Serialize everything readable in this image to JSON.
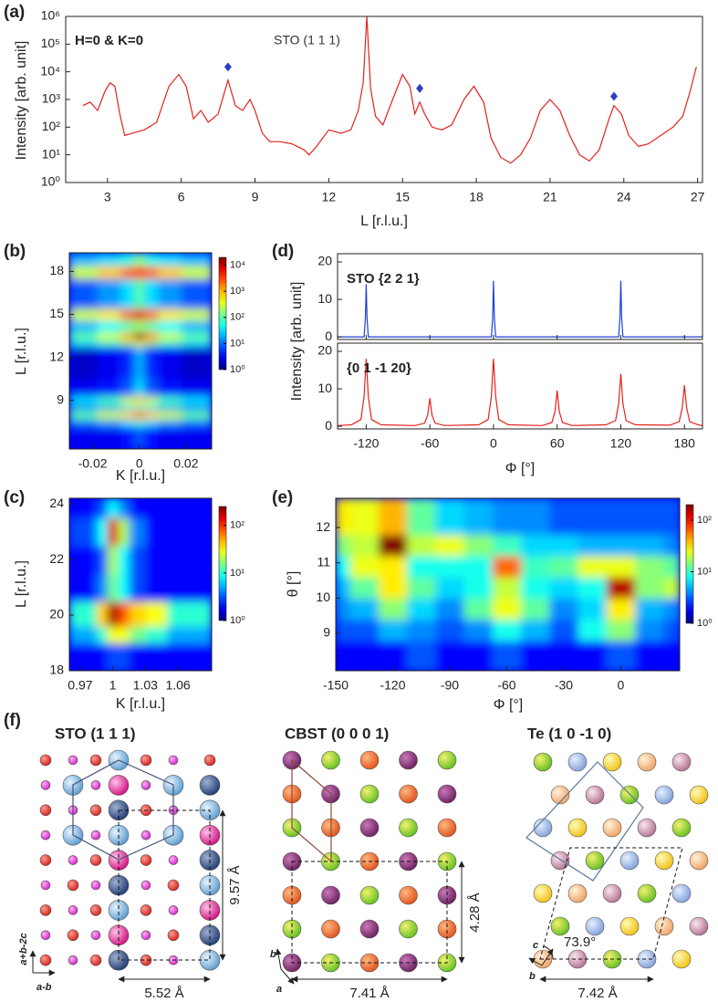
{
  "chart_data": [
    {
      "type": "line",
      "panel": "(a)",
      "xlabel": "L [r.l.u.]",
      "ylabel": "Intensity [arb. unit]",
      "annotations": [
        "H=0 & K=0",
        "STO (1 1 1)"
      ],
      "log_y": true,
      "xlim": [
        1.3,
        27.2
      ],
      "ylim": [
        1,
        1000000
      ],
      "xticks": [
        3,
        6,
        9,
        12,
        15,
        18,
        21,
        24,
        27
      ],
      "yticks": [
        {
          "value": 1,
          "label": "10⁰"
        },
        {
          "value": 10,
          "label": "10¹"
        },
        {
          "value": 100,
          "label": "10²"
        },
        {
          "value": 1000,
          "label": "10³"
        },
        {
          "value": 10000,
          "label": "10⁴"
        },
        {
          "value": 100000,
          "label": "10⁵"
        },
        {
          "value": 1000000,
          "label": "10⁶"
        }
      ],
      "series": [
        {
          "type": "line",
          "color": "#e3231c",
          "x": [
            2.0,
            2.3,
            2.6,
            2.9,
            3.1,
            3.3,
            3.5,
            3.7,
            4.0,
            4.5,
            5.0,
            5.5,
            5.9,
            6.2,
            6.5,
            6.8,
            7.1,
            7.5,
            7.9,
            8.2,
            8.5,
            8.8,
            9.0,
            9.3,
            9.6,
            10.0,
            10.5,
            11.0,
            11.2,
            11.5,
            12.0,
            12.5,
            12.9,
            13.2,
            13.4,
            13.55,
            13.7,
            13.9,
            14.2,
            14.6,
            15.0,
            15.3,
            15.5,
            15.7,
            15.9,
            16.2,
            16.6,
            17.0,
            17.5,
            17.9,
            18.3,
            18.6,
            19.0,
            19.4,
            19.8,
            20.2,
            20.6,
            21.0,
            21.4,
            21.8,
            22.2,
            22.6,
            23.0,
            23.4,
            23.6,
            23.9,
            24.2,
            24.6,
            25.0,
            25.5,
            26.0,
            26.4,
            26.7,
            26.95
          ],
          "values": [
            600,
            800,
            400,
            2000,
            4000,
            3000,
            300,
            50,
            60,
            80,
            150,
            3000,
            8000,
            3000,
            200,
            400,
            150,
            300,
            5000,
            600,
            400,
            1000,
            400,
            60,
            30,
            30,
            25,
            15,
            10,
            20,
            80,
            60,
            80,
            400,
            4000,
            1000000,
            2500,
            250,
            120,
            1000,
            8000,
            3000,
            300,
            800,
            300,
            100,
            80,
            120,
            1000,
            3000,
            800,
            40,
            8,
            5,
            10,
            40,
            400,
            1000,
            400,
            50,
            10,
            6,
            15,
            200,
            600,
            300,
            50,
            20,
            25,
            50,
            100,
            250,
            2000,
            15000
          ]
        },
        {
          "type": "scatter",
          "marker": "diamond",
          "color": "#2b3fc4",
          "x": [
            7.9,
            15.7,
            23.6
          ],
          "values": [
            15000,
            2500,
            1300
          ]
        }
      ]
    },
    {
      "type": "heatmap",
      "panel": "(b)",
      "xlabel": "K [r.l.u.]",
      "ylabel": "L [r.l.u.]",
      "colormap": "jet",
      "log_z": true,
      "xlim": [
        -0.03,
        0.031
      ],
      "ylim": [
        5.6,
        19.3
      ],
      "xticks": [
        -0.02,
        0,
        0.02
      ],
      "yticks": [
        9,
        12,
        15,
        18
      ],
      "xbins": [
        -0.03,
        -0.018,
        -0.008,
        -0.002,
        0.002,
        0.008,
        0.018,
        0.031
      ],
      "ybins": [
        5.6,
        7.2,
        7.7,
        8.3,
        8.7,
        9.3,
        10.5,
        12.8,
        13.2,
        13.8,
        14.6,
        15.4,
        17.5,
        18.4,
        19.3
      ],
      "z": [
        [
          3,
          3,
          4,
          8,
          4,
          3,
          3
        ],
        [
          10,
          15,
          30,
          60,
          30,
          15,
          10
        ],
        [
          100,
          300,
          800,
          2000,
          800,
          300,
          100
        ],
        [
          10,
          15,
          30,
          60,
          30,
          15,
          10
        ],
        [
          30,
          80,
          300,
          800,
          300,
          80,
          30
        ],
        [
          3,
          4,
          8,
          30,
          8,
          4,
          3
        ],
        [
          2,
          3,
          5,
          20,
          5,
          3,
          2
        ],
        [
          30,
          60,
          150,
          500,
          150,
          60,
          30
        ],
        [
          100,
          300,
          1000,
          20000,
          1500,
          300,
          100
        ],
        [
          20,
          40,
          80,
          200,
          80,
          40,
          20
        ],
        [
          300,
          600,
          2000,
          8000,
          2000,
          600,
          300
        ],
        [
          8,
          15,
          30,
          100,
          30,
          15,
          8
        ],
        [
          300,
          800,
          2000,
          4000,
          2000,
          800,
          300
        ],
        [
          20,
          30,
          50,
          150,
          50,
          30,
          20
        ]
      ],
      "zlim": [
        1,
        20000
      ],
      "zticks": [
        {
          "value": 1,
          "label": "10⁰"
        },
        {
          "value": 10,
          "label": "10¹"
        },
        {
          "value": 100,
          "label": "10²"
        },
        {
          "value": 1000,
          "label": "10³"
        },
        {
          "value": 10000,
          "label": "10⁴"
        }
      ]
    },
    {
      "type": "heatmap",
      "panel": "(c)",
      "xlabel": "K [r.l.u.]",
      "ylabel": "L [r.l.u.]",
      "colormap": "jet",
      "log_z": true,
      "xlim": [
        0.96,
        1.091
      ],
      "ylim": [
        18,
        24.2
      ],
      "xticks": [
        0.97,
        1,
        1.03,
        1.06
      ],
      "yticks": [
        18,
        20,
        22,
        24
      ],
      "xbins": [
        0.96,
        0.985,
        0.995,
        1.005,
        1.015,
        1.03,
        1.05,
        1.091
      ],
      "ybins": [
        18,
        19,
        19.6,
        20.5,
        21.5,
        22.5,
        23.5,
        24.2
      ],
      "z": [
        [
          2,
          2,
          3,
          3,
          2,
          2,
          2
        ],
        [
          5,
          10,
          30,
          30,
          15,
          10,
          5
        ],
        [
          10,
          40,
          200,
          80,
          40,
          30,
          10
        ],
        [
          2,
          4,
          15,
          8,
          3,
          2,
          2
        ],
        [
          2,
          3,
          20,
          8,
          3,
          2,
          2
        ],
        [
          3,
          8,
          150,
          20,
          4,
          2,
          2
        ],
        [
          2,
          3,
          8,
          4,
          2,
          2,
          2
        ]
      ],
      "zlim": [
        1,
        250
      ],
      "zticks": [
        {
          "value": 1,
          "label": "10⁰"
        },
        {
          "value": 10,
          "label": "10¹"
        },
        {
          "value": 100,
          "label": "10²"
        }
      ]
    },
    {
      "type": "line",
      "panel": "(d)",
      "xlabel": "Φ [°]",
      "ylabel": "Intensity [arb. unit]",
      "xlim": [
        -147,
        197
      ],
      "ylim": [
        -0.7,
        22.2
      ],
      "xticks": [
        -120,
        -60,
        0,
        60,
        120,
        180
      ],
      "yticks": [
        0,
        10,
        20
      ],
      "subplots": [
        {
          "annotation": "STO {2 2 1}",
          "series": [
            {
              "type": "line",
              "color": "#1f3fd6",
              "x": [
                -147,
                -122,
                -120.8,
                -120,
                -119.2,
                -118,
                -2,
                -0.8,
                0,
                0.8,
                2,
                118,
                119.2,
                120,
                120.8,
                122,
                197
              ],
              "values": [
                0,
                0,
                5,
                14,
                5,
                0,
                0,
                5,
                15,
                5,
                0,
                0,
                5,
                15,
                5,
                0,
                0
              ]
            }
          ]
        },
        {
          "annotation": "{0 1 -1 20}",
          "series": [
            {
              "type": "line",
              "color": "#e3231c",
              "x": [
                -147,
                -134,
                -125,
                -122,
                -120,
                -118,
                -115,
                -106,
                -74,
                -65,
                -62,
                -60,
                -58,
                -55,
                -46,
                -14,
                -5,
                -2,
                0,
                2,
                5,
                14,
                46,
                55,
                58,
                60,
                62,
                65,
                74,
                106,
                115,
                118,
                120,
                122,
                125,
                134,
                166,
                175,
                178,
                180,
                182,
                185,
                194,
                197
              ],
              "values": [
                0.2,
                0.4,
                1.8,
                8,
                18,
                8,
                1.8,
                0.4,
                0.2,
                0.8,
                3,
                7.5,
                3,
                0.8,
                0.2,
                0.4,
                1.8,
                8,
                18,
                8,
                1.8,
                0.4,
                0.2,
                1,
                4,
                9.5,
                4,
                1,
                0.2,
                0.4,
                1.5,
                6,
                14,
                6,
                1.5,
                0.4,
                0.3,
                1.2,
                5,
                11,
                5,
                1.2,
                0.3,
                0.2
              ]
            }
          ]
        }
      ]
    },
    {
      "type": "heatmap",
      "panel": "(e)",
      "xlabel": "Φ [°]",
      "ylabel": "θ [°]",
      "colormap": "jet",
      "log_z": true,
      "xlim": [
        -150,
        31
      ],
      "ylim": [
        7.94,
        12.83
      ],
      "xticks": [
        -150,
        -120,
        -90,
        -60,
        -30,
        0
      ],
      "yticks": [
        9,
        10,
        11,
        12
      ],
      "xbins": [
        -150,
        -142.5,
        -127.5,
        -112.5,
        -97.5,
        -82.5,
        -67.5,
        -52.5,
        -37.5,
        -22.5,
        -7.5,
        7.5,
        22.5,
        31
      ],
      "ybins": [
        7.94,
        8.8,
        9.4,
        10,
        10.6,
        11.2,
        11.8,
        12.83
      ],
      "z": [
        [
          2,
          2,
          2,
          3,
          2,
          2,
          3,
          2,
          2,
          2,
          3,
          2,
          2
        ],
        [
          3,
          3,
          5,
          4,
          3,
          4,
          8,
          5,
          3,
          8,
          15,
          4,
          3
        ],
        [
          4,
          5,
          15,
          6,
          4,
          12,
          25,
          12,
          4,
          6,
          30,
          5,
          4
        ],
        [
          5,
          12,
          30,
          12,
          6,
          8,
          20,
          8,
          6,
          8,
          150,
          15,
          20
        ],
        [
          8,
          25,
          30,
          8,
          8,
          8,
          60,
          10,
          12,
          25,
          25,
          15,
          12
        ],
        [
          15,
          20,
          200,
          20,
          25,
          15,
          10,
          6,
          6,
          5,
          5,
          5,
          4
        ],
        [
          30,
          25,
          40,
          12,
          6,
          5,
          4,
          4,
          3,
          3,
          3,
          3,
          3
        ]
      ],
      "zlim": [
        1,
        200
      ],
      "zticks": [
        {
          "value": 1,
          "label": "10⁰"
        },
        {
          "value": 10,
          "label": "10¹"
        },
        {
          "value": 100,
          "label": "10²"
        }
      ]
    }
  ],
  "structures": {
    "panel": "(f)",
    "items": [
      {
        "title": "STO (1 1 1)",
        "vertical": "9.57 Å",
        "horizontal": "5.52 Å",
        "axis_up": "a+b-2c",
        "axis_right": "a-b"
      },
      {
        "title": "CBST (0 0 0 1)",
        "vertical": "4.28 Å",
        "horizontal": "7.41 Å",
        "axis_up": "b",
        "axis_right": "a"
      },
      {
        "title": "Te (1 0 -1 0)",
        "angle": "73.9°",
        "horizontal": "7.42 Å",
        "axis_up": "c",
        "axis_right": "b"
      }
    ]
  }
}
